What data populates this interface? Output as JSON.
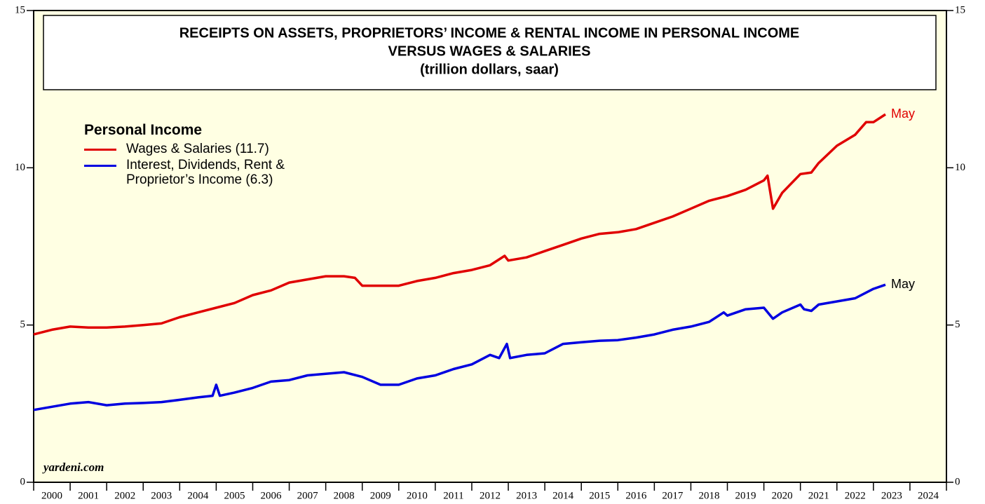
{
  "chart_data": {
    "type": "line",
    "title": [
      "RECEIPTS ON ASSETS, PROPRIETORS’ INCOME & RENTAL INCOME IN PERSONAL INCOME",
      "VERSUS WAGES & SALARIES",
      "(trillion dollars, saar)"
    ],
    "legend_title": "Personal Income",
    "source": "yardeni.com",
    "categories": [
      "2000",
      "2001",
      "2002",
      "2003",
      "2004",
      "2005",
      "2006",
      "2007",
      "2008",
      "2009",
      "2010",
      "2011",
      "2012",
      "2013",
      "2014",
      "2015",
      "2016",
      "2017",
      "2018",
      "2019",
      "2020",
      "2021",
      "2022",
      "2023",
      "2024"
    ],
    "xlim": [
      2000,
      2025
    ],
    "ylim": [
      0,
      15
    ],
    "yticks": [
      0,
      5,
      10,
      15
    ],
    "series": [
      {
        "name": "Wages & Salaries (11.7)",
        "color": "#e00000",
        "end_label": "May",
        "x": [
          2000,
          2000.5,
          2001,
          2001.5,
          2002,
          2002.5,
          2003,
          2003.5,
          2004,
          2004.5,
          2005,
          2005.5,
          2006,
          2006.5,
          2007,
          2007.5,
          2008,
          2008.5,
          2008.8,
          2009,
          2009.5,
          2010,
          2010.5,
          2011,
          2011.5,
          2012,
          2012.5,
          2012.9,
          2013,
          2013.5,
          2014,
          2014.5,
          2015,
          2015.5,
          2016,
          2016.5,
          2017,
          2017.5,
          2018,
          2018.5,
          2019,
          2019.5,
          2020,
          2020.1,
          2020.25,
          2020.5,
          2021,
          2021.3,
          2021.5,
          2022,
          2022.5,
          2022.8,
          2023,
          2023.33
        ],
        "values": [
          4.7,
          4.85,
          4.95,
          4.92,
          4.92,
          4.95,
          5.0,
          5.05,
          5.25,
          5.4,
          5.55,
          5.7,
          5.95,
          6.1,
          6.35,
          6.45,
          6.55,
          6.55,
          6.5,
          6.25,
          6.25,
          6.25,
          6.4,
          6.5,
          6.65,
          6.75,
          6.9,
          7.2,
          7.05,
          7.15,
          7.35,
          7.55,
          7.75,
          7.9,
          7.95,
          8.05,
          8.25,
          8.45,
          8.7,
          8.95,
          9.1,
          9.3,
          9.6,
          9.75,
          8.7,
          9.2,
          9.8,
          9.85,
          10.15,
          10.7,
          11.05,
          11.45,
          11.45,
          11.7
        ]
      },
      {
        "name": "Interest, Dividends, Rent & Proprietor’s Income (6.3)",
        "color": "#0000e0",
        "end_label": "May",
        "x": [
          2000,
          2000.5,
          2001,
          2001.5,
          2002,
          2002.5,
          2003,
          2003.5,
          2004,
          2004.5,
          2004.9,
          2005,
          2005.1,
          2005.5,
          2006,
          2006.5,
          2007,
          2007.5,
          2008,
          2008.5,
          2009,
          2009.5,
          2010,
          2010.5,
          2011,
          2011.5,
          2012,
          2012.5,
          2012.75,
          2012.96,
          2013.05,
          2013.5,
          2014,
          2014.5,
          2015,
          2015.5,
          2016,
          2016.5,
          2017,
          2017.5,
          2018,
          2018.5,
          2018.9,
          2019,
          2019.5,
          2020,
          2020.25,
          2020.5,
          2021,
          2021.1,
          2021.3,
          2021.5,
          2022,
          2022.5,
          2023,
          2023.33
        ],
        "values": [
          2.3,
          2.4,
          2.5,
          2.55,
          2.45,
          2.5,
          2.52,
          2.55,
          2.62,
          2.7,
          2.75,
          3.1,
          2.75,
          2.85,
          3.0,
          3.2,
          3.25,
          3.4,
          3.45,
          3.5,
          3.35,
          3.1,
          3.1,
          3.3,
          3.4,
          3.6,
          3.75,
          4.05,
          3.95,
          4.4,
          3.95,
          4.05,
          4.1,
          4.4,
          4.45,
          4.5,
          4.52,
          4.6,
          4.7,
          4.85,
          4.95,
          5.1,
          5.4,
          5.3,
          5.5,
          5.55,
          5.2,
          5.4,
          5.65,
          5.5,
          5.45,
          5.65,
          5.75,
          5.85,
          6.15,
          6.28
        ]
      }
    ]
  }
}
